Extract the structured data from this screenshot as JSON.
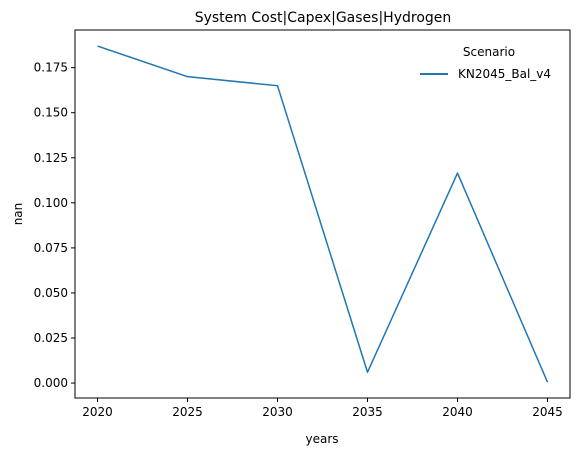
{
  "chart_data": {
    "type": "line",
    "title": "System Cost|Capex|Gases|Hydrogen",
    "xlabel": "years",
    "ylabel": "nan",
    "x": [
      2020,
      2025,
      2030,
      2035,
      2040,
      2045
    ],
    "x_ticks": [
      "2020",
      "2025",
      "2030",
      "2035",
      "2040",
      "2045"
    ],
    "y_ticks": [
      "0.000",
      "0.025",
      "0.050",
      "0.075",
      "0.100",
      "0.125",
      "0.150",
      "0.175"
    ],
    "y_tick_values": [
      0,
      0.025,
      0.05,
      0.075,
      0.1,
      0.125,
      0.15,
      0.175
    ],
    "ylim": [
      -0.0083,
      0.1959
    ],
    "xlim": [
      2018.75,
      2046.25
    ],
    "grid": false,
    "legend": {
      "title": "Scenario",
      "placement": "top-right"
    },
    "series": [
      {
        "name": "KN2045_Bal_v4",
        "color": "#1f77b4",
        "values": [
          0.187,
          0.17,
          0.165,
          0.006,
          0.1165,
          0.0005
        ]
      }
    ]
  }
}
